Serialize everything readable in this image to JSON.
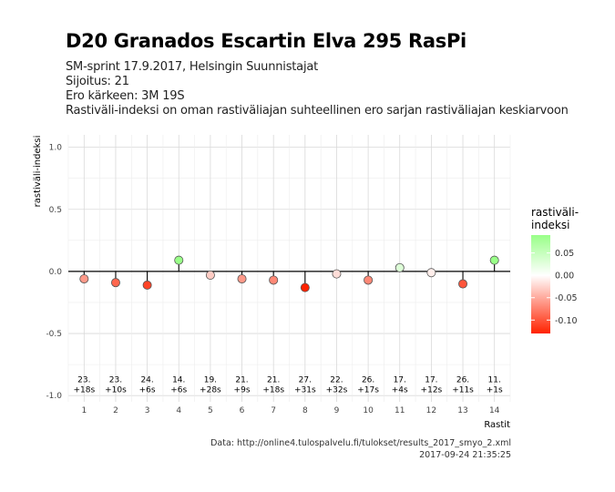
{
  "title": "D20 Granados Escartin Elva 295 RasPi",
  "subtitle_lines": [
    "SM-sprint 17.9.2017, Helsingin Suunnistajat",
    "Sijoitus: 21",
    "Ero kärkeen: 3M 19S",
    "Rastiväli-indeksi on oman rastiväliajan suhteellinen ero sarjan rastiväliajan keskiarvoon"
  ],
  "caption_lines": [
    "Data: http://online4.tulospalvelu.fi/tulokset/results_2017_smyo_2.xml",
    "2017-09-24 21:35:25"
  ],
  "chart_data": {
    "type": "scatter",
    "xlabel": "Rastit",
    "ylabel": "rastiväli-indeksi",
    "xlim": [
      0.5,
      14.5
    ],
    "ylim": [
      -1.05,
      1.1
    ],
    "x_ticks": [
      1,
      2,
      3,
      4,
      5,
      6,
      7,
      8,
      9,
      10,
      11,
      12,
      13,
      14
    ],
    "y_ticks": [
      -1.0,
      -0.5,
      0.0,
      0.5,
      1.0
    ],
    "y_tick_labels": [
      "-1.0",
      "-0.5",
      "0.0",
      "0.5",
      "1.0"
    ],
    "grid": true,
    "baseline": 0,
    "x": [
      1,
      2,
      3,
      4,
      5,
      6,
      7,
      8,
      9,
      10,
      11,
      12,
      13,
      14
    ],
    "y": [
      -0.06,
      -0.09,
      -0.11,
      0.09,
      -0.03,
      -0.06,
      -0.07,
      -0.13,
      -0.02,
      -0.07,
      0.03,
      -0.01,
      -0.1,
      0.09
    ],
    "point_labels": [
      [
        "23.",
        "+18s"
      ],
      [
        "23.",
        "+10s"
      ],
      [
        "24.",
        "+6s"
      ],
      [
        "14.",
        "+6s"
      ],
      [
        "19.",
        "+28s"
      ],
      [
        "21.",
        "+9s"
      ],
      [
        "21.",
        "+18s"
      ],
      [
        "27.",
        "+31s"
      ],
      [
        "22.",
        "+32s"
      ],
      [
        "26.",
        "+17s"
      ],
      [
        "17.",
        "+4s"
      ],
      [
        "17.",
        "+12s"
      ],
      [
        "26.",
        "+11s"
      ],
      [
        "11.",
        "+1s"
      ]
    ],
    "point_label_y": -0.92,
    "legend": {
      "title_lines": [
        "rastiväli-",
        "indeksi"
      ],
      "position": "right",
      "range": [
        -0.13,
        0.09
      ],
      "ticks": [
        0.05,
        0.0,
        -0.05,
        -0.1
      ],
      "tick_labels": [
        "0.05",
        "0.00",
        "-0.05",
        "-0.10"
      ],
      "colors": {
        "low": "#ff2200",
        "mid": "#ffffff",
        "high": "#99ff88"
      }
    }
  }
}
